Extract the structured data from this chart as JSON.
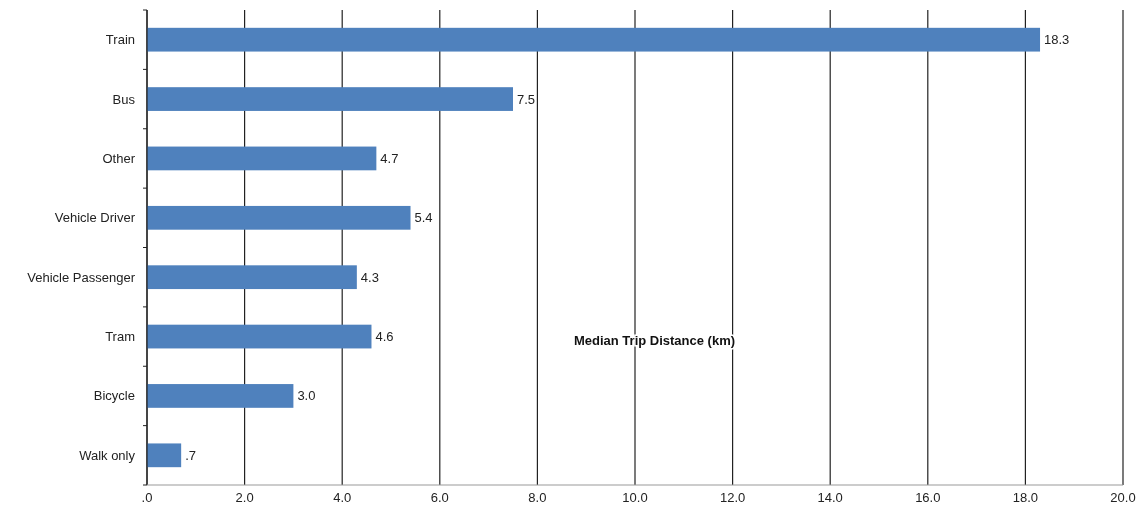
{
  "chart_data": {
    "type": "bar",
    "orientation": "horizontal",
    "xlabel": "Median Trip Distance (km)",
    "categories": [
      "Train",
      "Bus",
      "Other",
      "Vehicle Driver",
      "Vehicle Passenger",
      "Tram",
      "Bicycle",
      "Walk only"
    ],
    "values": [
      18.3,
      7.5,
      4.7,
      5.4,
      4.3,
      4.6,
      3.0,
      0.7
    ],
    "value_labels": [
      "18.3",
      "7.5",
      "4.7",
      "5.4",
      "4.3",
      "4.6",
      "3.0",
      ".7"
    ],
    "color": "#4f81bd",
    "xlim": [
      0,
      20
    ],
    "xticks": [
      {
        "value": 0,
        "label": ".0"
      },
      {
        "value": 2,
        "label": "2.0"
      },
      {
        "value": 4,
        "label": "4.0"
      },
      {
        "value": 6,
        "label": "6.0"
      },
      {
        "value": 8,
        "label": "8.0"
      },
      {
        "value": 10,
        "label": "10.0"
      },
      {
        "value": 12,
        "label": "12.0"
      },
      {
        "value": 14,
        "label": "14.0"
      },
      {
        "value": 16,
        "label": "16.0"
      },
      {
        "value": 18,
        "label": "18.0"
      },
      {
        "value": 20,
        "label": "20.0"
      }
    ],
    "grid": "x"
  }
}
